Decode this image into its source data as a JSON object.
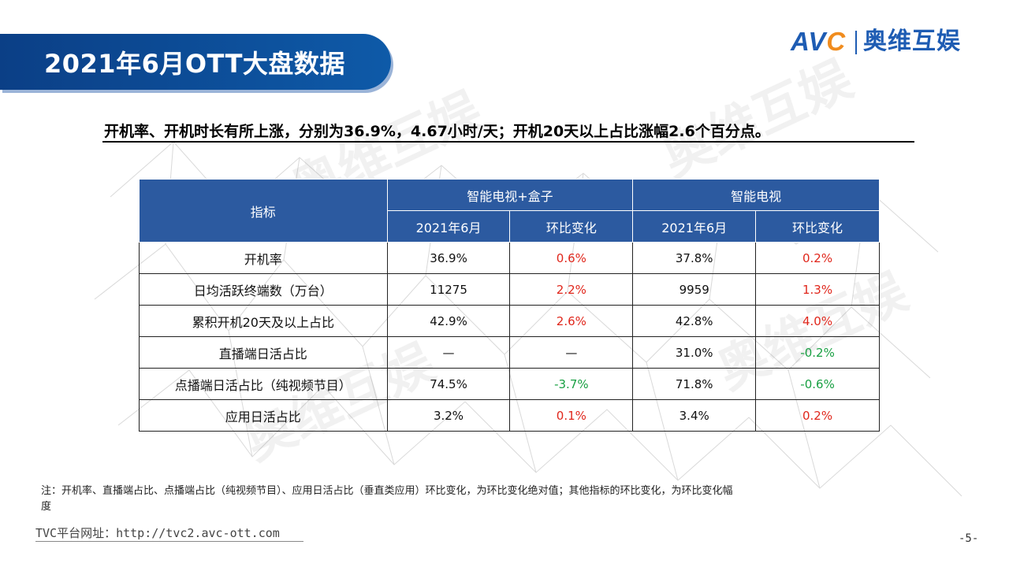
{
  "slide": {
    "title": "2021年6月OTT大盘数据",
    "logo": {
      "brand_en": "AVC",
      "brand_cn": "奥维互娱"
    },
    "headline": "开机率、开机时长有所上涨，分别为36.9%，4.67小时/天；开机20天以上占比涨幅2.6个百分点。",
    "watermark_text": "奥维互娱"
  },
  "table": {
    "header_metric": "指标",
    "group_1": "智能电视+盒子",
    "group_2": "智能电视",
    "sub_col_month": "2021年6月",
    "sub_col_change": "环比变化",
    "rows": [
      {
        "metric": "开机率",
        "g1_value": "36.9%",
        "g1_change": "0.6%",
        "g2_value": "37.8%",
        "g2_change": "0.2%"
      },
      {
        "metric": "日均活跃终端数（万台）",
        "g1_value": "11275",
        "g1_change": "2.2%",
        "g2_value": "9959",
        "g2_change": "1.3%"
      },
      {
        "metric": "累积开机20天及以上占比",
        "g1_value": "42.9%",
        "g1_change": "2.6%",
        "g2_value": "42.8%",
        "g2_change": "4.0%"
      },
      {
        "metric": "直播端日活占比",
        "g1_value": "—",
        "g1_change": "—",
        "g2_value": "31.0%",
        "g2_change": "-0.2%"
      },
      {
        "metric": "点播端日活占比（纯视频节目）",
        "g1_value": "74.5%",
        "g1_change": "-3.7%",
        "g2_value": "71.8%",
        "g2_change": "-0.6%"
      },
      {
        "metric": "应用日活占比",
        "g1_value": "3.2%",
        "g1_change": "0.1%",
        "g2_value": "3.4%",
        "g2_change": "0.2%"
      }
    ],
    "colors": {
      "positive": "#e0261b",
      "negative": "#19a043",
      "header_bg": "#2c5aa0"
    }
  },
  "footer": {
    "note": "注：开机率、直播端占比、点播端占比（纯视频节目）、应用日活占比（垂直类应用）环比变化，为环比变化绝对值；其他指标的环比变化，为环比变化幅度",
    "platform": "TVC平台网址：http://tvc2.avc-ott.com",
    "page": "-5-"
  }
}
